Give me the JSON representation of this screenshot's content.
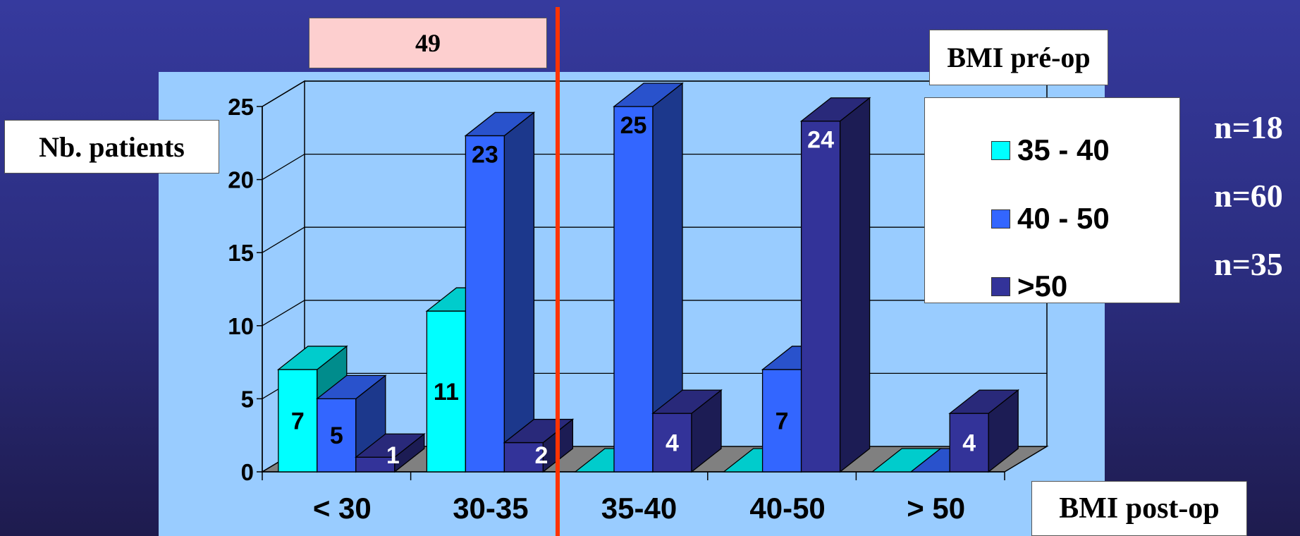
{
  "chart_data": {
    "type": "bar",
    "categories": [
      "< 30",
      "30-35",
      "35-40",
      "40-50",
      "> 50"
    ],
    "series": [
      {
        "name": "35 - 40",
        "values": [
          7,
          11,
          0,
          0,
          0
        ],
        "color": "#00ffff"
      },
      {
        "name": "40 - 50",
        "values": [
          5,
          23,
          25,
          7,
          0
        ],
        "color": "#3366ff"
      },
      {
        "name": ">50",
        "values": [
          1,
          2,
          4,
          24,
          4
        ],
        "color": "#333399"
      }
    ],
    "data_labels": [
      [
        "7",
        "11",
        "",
        "",
        ""
      ],
      [
        "5",
        "23",
        "25",
        "7",
        ""
      ],
      [
        "1",
        "2",
        "4",
        "24",
        "4"
      ]
    ],
    "yticks": [
      0,
      5,
      10,
      15,
      20,
      25
    ],
    "ylim": [
      0,
      25
    ],
    "ylabel": "Nb. patients",
    "xlabel": "BMI post-op",
    "legend_title": "BMI pré-op",
    "legend_placement": "right",
    "grid": true
  },
  "annotations": {
    "top_box": "49",
    "n_labels": [
      "n=18",
      "n=60",
      "n=35"
    ]
  },
  "colors": {
    "plot_area": "#99ccff",
    "floor": "#808080",
    "divider_line": "#ff3300"
  }
}
